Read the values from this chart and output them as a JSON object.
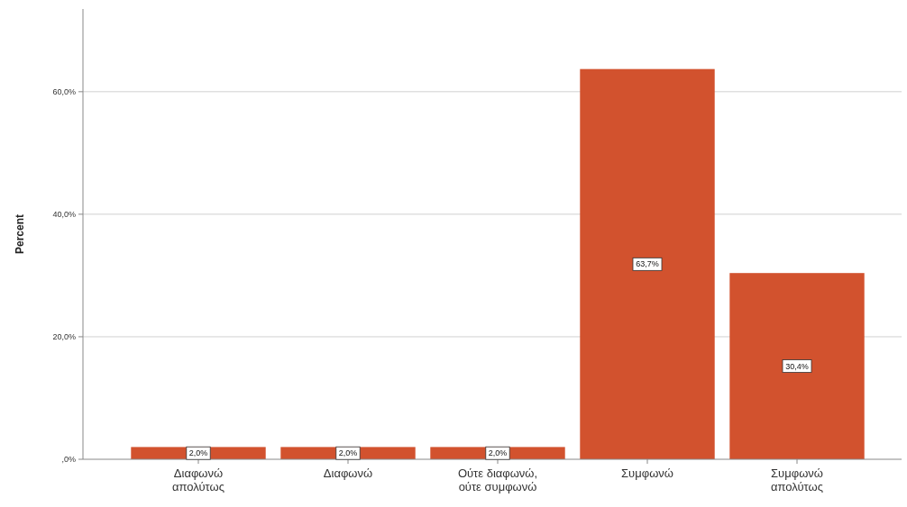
{
  "chart_data": {
    "type": "bar",
    "ylabel": "Percent",
    "categories": [
      "Διαφωνώ απολύτως",
      "Διαφωνώ",
      "Ούτε διαφωνώ, ούτε συμφωνώ",
      "Συμφωνώ",
      "Συμφωνώ απολύτως"
    ],
    "values": [
      2.0,
      2.0,
      2.0,
      63.7,
      30.4
    ],
    "value_labels": [
      "2,0%",
      "2,0%",
      "2,0%",
      "63,7%",
      "30,4%"
    ],
    "color": "#d2522e",
    "ylim": [
      0,
      73.5
    ],
    "yticks": [
      {
        "value": 0,
        "label": ",0%"
      },
      {
        "value": 20,
        "label": "20,0%"
      },
      {
        "value": 40,
        "label": "40,0%"
      },
      {
        "value": 60,
        "label": "60,0%"
      }
    ],
    "grid": "y"
  }
}
